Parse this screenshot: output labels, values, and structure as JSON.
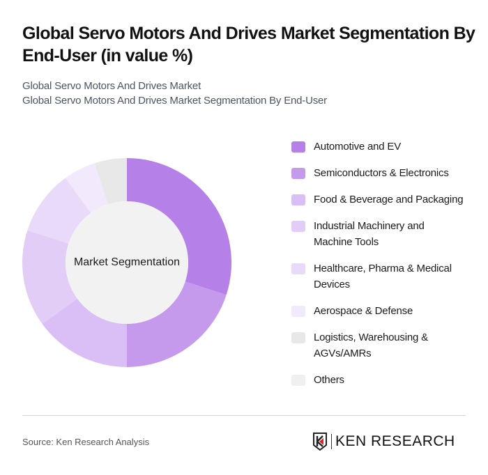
{
  "header": {
    "title": "Global Servo Motors And Drives Market Segmentation By End-User (in value %)",
    "subtitle_line1": "Global Servo Motors And Drives Market",
    "subtitle_line2": "Global Servo Motors And Drives Market Segmentation By End-User"
  },
  "chart": {
    "center_label": "Market Segmentation"
  },
  "legend": {
    "items": [
      {
        "label": "Automotive and EV",
        "color": "#b580e8"
      },
      {
        "label": "Semiconductors & Electronics",
        "color": "#c59aed"
      },
      {
        "label": "Food & Beverage and Packaging",
        "color": "#d9bff5"
      },
      {
        "label": "Industrial Machinery and Machine Tools",
        "color": "#e2cdf7"
      },
      {
        "label": "Healthcare, Pharma & Medical Devices",
        "color": "#e9dafa"
      },
      {
        "label": "Aerospace & Defense",
        "color": "#f2eafc"
      },
      {
        "label": "Logistics, Warehousing & AGVs/AMRs",
        "color": "#e8e8e8"
      },
      {
        "label": "Others",
        "color": "#f0f0f0"
      }
    ]
  },
  "footer": {
    "source": "Source: Ken Research Analysis",
    "logo_text": "KEN RESEARCH"
  },
  "chart_data": {
    "type": "pie",
    "subtype": "donut",
    "title": "Global Servo Motors And Drives Market Segmentation By End-User (in value %)",
    "center_label": "Market Segmentation",
    "categories": [
      "Automotive and EV",
      "Semiconductors & Electronics",
      "Food & Beverage and Packaging",
      "Industrial Machinery and Machine Tools",
      "Healthcare, Pharma & Medical Devices",
      "Aerospace & Defense",
      "Logistics, Warehousing & AGVs/AMRs",
      "Others"
    ],
    "values": [
      30,
      20,
      15,
      15,
      10,
      5,
      5,
      0
    ],
    "colors": [
      "#b580e8",
      "#c59aed",
      "#d9bff5",
      "#e2cdf7",
      "#e9dafa",
      "#f2eafc",
      "#e8e8e8",
      "#f0f0f0"
    ],
    "unit": "%",
    "legend_position": "right",
    "start_angle": "top, clockwise"
  }
}
